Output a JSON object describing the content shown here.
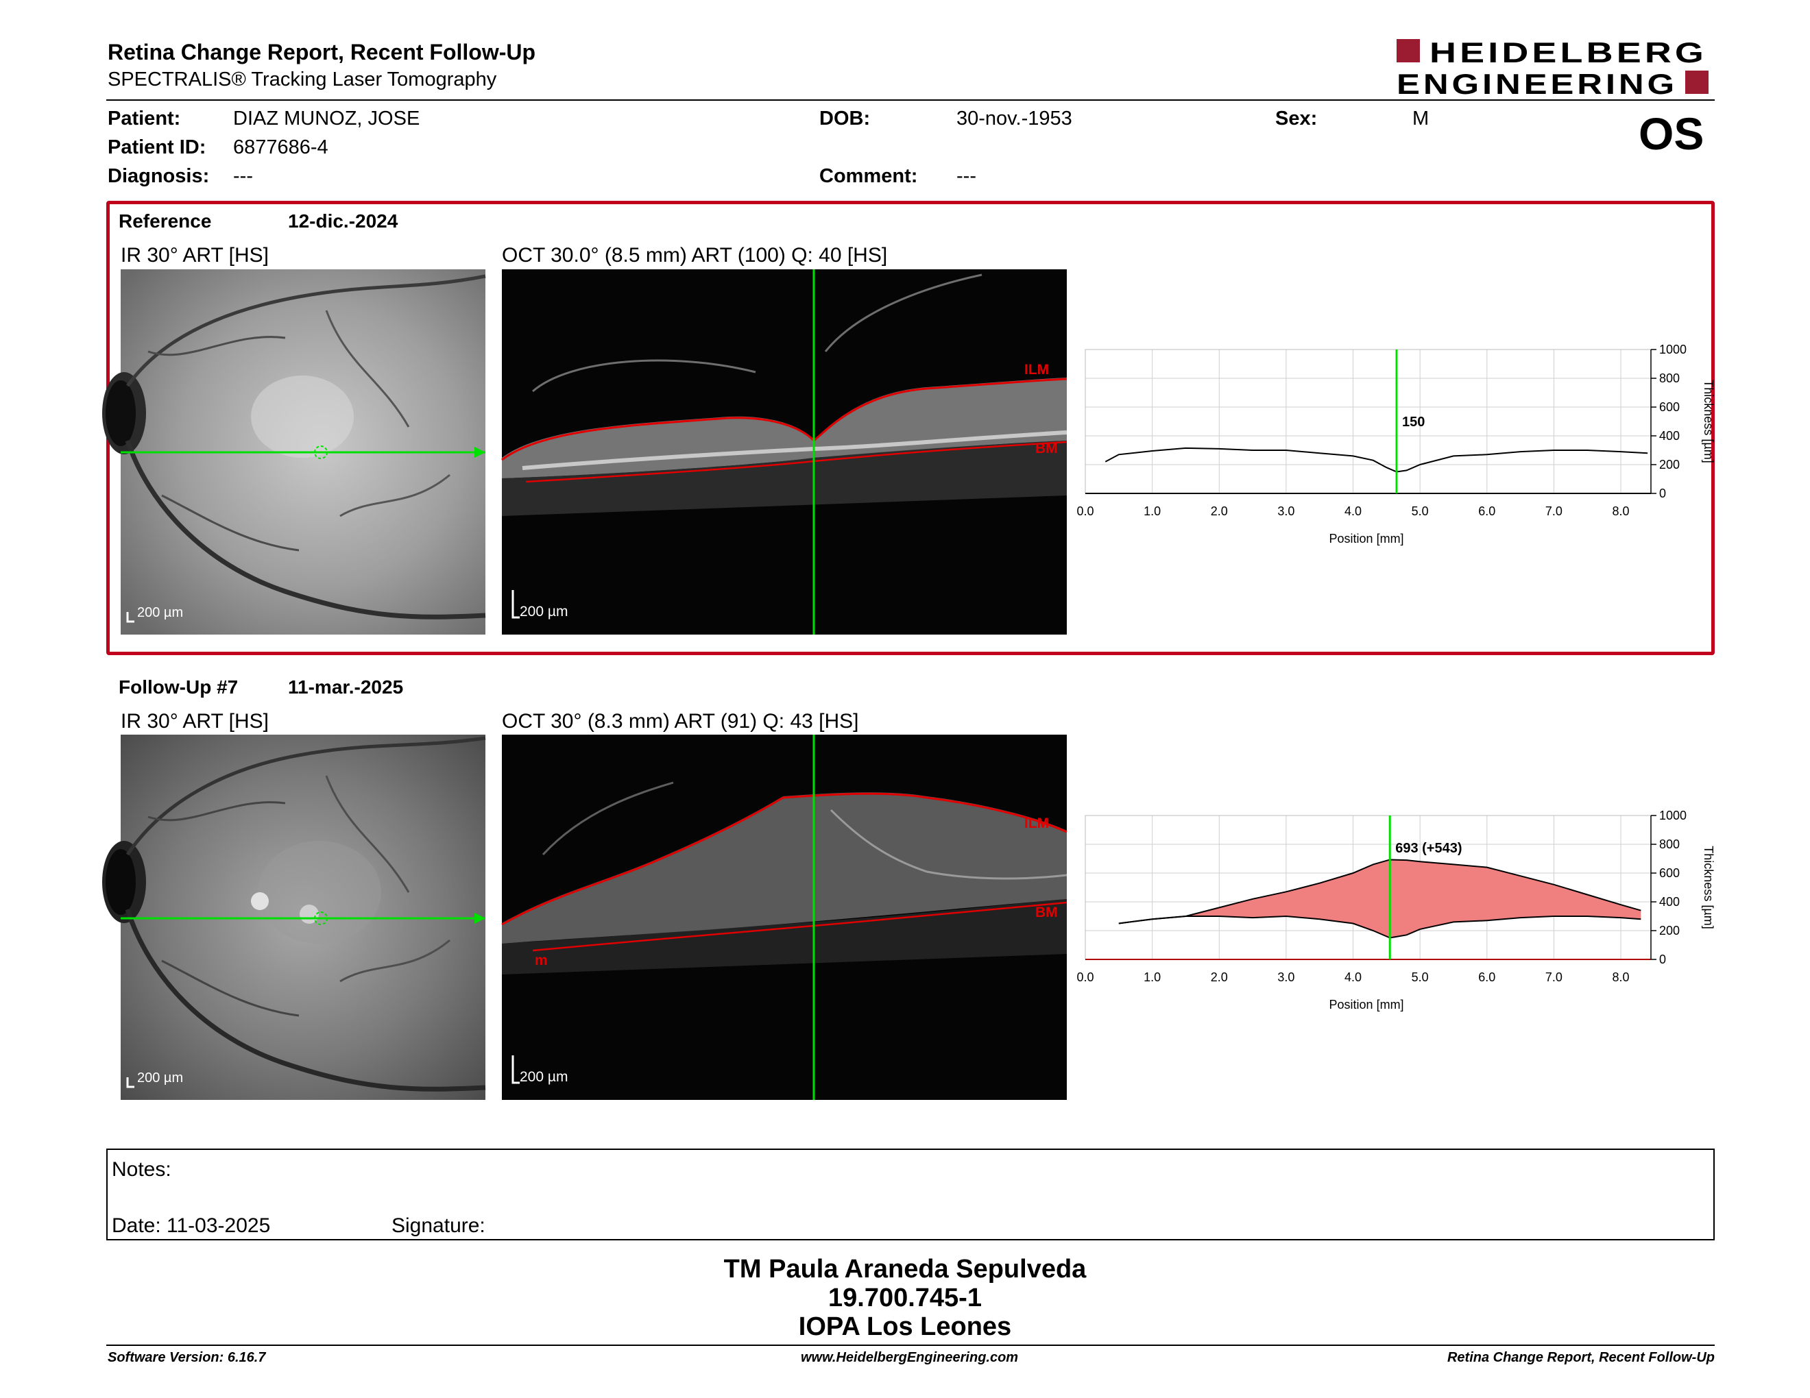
{
  "header": {
    "title": "Retina Change Report, Recent Follow-Up",
    "subtitle": "SPECTRALIS® Tracking Laser Tomography",
    "logo_line1": "HEIDELBERG",
    "logo_line2": "ENGINEERING",
    "eye": "OS"
  },
  "patient": {
    "patient_label": "Patient:",
    "patient_value": "DIAZ MUNOZ, JOSE",
    "id_label": "Patient ID:",
    "id_value": "6877686-4",
    "diagnosis_label": "Diagnosis:",
    "diagnosis_value": "---",
    "dob_label": "DOB:",
    "dob_value": "30-nov.-1953",
    "comment_label": "Comment:",
    "comment_value": "---",
    "sex_label": "Sex:",
    "sex_value": "M"
  },
  "reference": {
    "label": "Reference",
    "date": "12-dic.-2024",
    "ir_caption": "IR 30° ART [HS]",
    "oct_caption": "OCT 30.0° (8.5 mm) ART (100) Q: 40 [HS]",
    "scale_ir": "200 µm",
    "scale_oct": "200 µm",
    "ilm": "ILM",
    "bm": "BM"
  },
  "followup": {
    "label": "Follow-Up #7",
    "date": "11-mar.-2025",
    "ir_caption": "IR 30° ART [HS]",
    "oct_caption": "OCT 30° (8.3 mm) ART (91) Q: 43 [HS]",
    "scale_ir": "200 µm",
    "scale_oct": "200 µm",
    "ilm": "ILM",
    "bm": "BM",
    "m_label": "m"
  },
  "chart_data": [
    {
      "type": "line",
      "xlabel": "Position [mm]",
      "ylabel": "Thickness [µm]",
      "xlim": [
        0,
        8.5
      ],
      "ylim": [
        0,
        1000
      ],
      "x_ticks": [
        "0.0",
        "1.0",
        "2.0",
        "3.0",
        "4.0",
        "5.0",
        "6.0",
        "7.0",
        "8.0"
      ],
      "y_ticks": [
        "0",
        "200",
        "400",
        "600",
        "800",
        "1000"
      ],
      "cursor_x": 4.65,
      "cursor_label": "150",
      "series": [
        {
          "x": [
            0.3,
            0.5,
            1.0,
            1.5,
            2.0,
            2.5,
            3.0,
            3.5,
            4.0,
            4.3,
            4.5,
            4.65,
            4.8,
            5.0,
            5.5,
            6.0,
            6.5,
            7.0,
            7.5,
            8.0,
            8.4
          ],
          "values": [
            220,
            270,
            295,
            315,
            310,
            300,
            300,
            280,
            260,
            230,
            180,
            150,
            160,
            200,
            260,
            270,
            290,
            300,
            300,
            290,
            280
          ],
          "color": "#000000"
        }
      ]
    },
    {
      "type": "area",
      "xlabel": "Position [mm]",
      "ylabel": "Thickness [µm]",
      "xlim": [
        0,
        8.3
      ],
      "ylim": [
        0,
        1000
      ],
      "x_ticks": [
        "0.0",
        "1.0",
        "2.0",
        "3.0",
        "4.0",
        "5.0",
        "6.0",
        "7.0",
        "8.0"
      ],
      "y_ticks": [
        "0",
        "200",
        "400",
        "600",
        "800",
        "1000"
      ],
      "cursor_x": 4.55,
      "cursor_label": "693 (+543)",
      "fill_color": "#f08080",
      "series": [
        {
          "x": [
            0.5,
            1.0,
            1.5,
            2.0,
            2.5,
            3.0,
            3.5,
            4.0,
            4.3,
            4.55,
            4.8,
            5.0,
            5.5,
            6.0,
            6.5,
            7.0,
            7.5,
            8.0,
            8.3
          ],
          "values": [
            250,
            280,
            300,
            360,
            420,
            470,
            530,
            600,
            660,
            693,
            690,
            680,
            660,
            640,
            580,
            520,
            450,
            380,
            340
          ],
          "color": "#000000"
        },
        {
          "x": [
            0.5,
            1.0,
            1.5,
            2.0,
            2.5,
            3.0,
            3.5,
            4.0,
            4.3,
            4.55,
            4.8,
            5.0,
            5.5,
            6.0,
            6.5,
            7.0,
            7.5,
            8.0,
            8.3
          ],
          "values": [
            250,
            280,
            300,
            300,
            290,
            300,
            280,
            250,
            200,
            150,
            170,
            210,
            260,
            270,
            290,
            300,
            300,
            290,
            280
          ],
          "color": "#000000"
        }
      ]
    }
  ],
  "notes": {
    "notes_label": "Notes:",
    "date_label": "Date: 11-03-2025",
    "signature_label": "Signature:"
  },
  "signature": {
    "line1": "TM Paula Araneda Sepulveda",
    "line2": "19.700.745-1",
    "line3": "IOPA Los Leones"
  },
  "footer": {
    "left": "Software Version: 6.16.7",
    "center": "www.HeidelbergEngineering.com",
    "right": "Retina Change Report, Recent Follow-Up"
  },
  "colors": {
    "brand_red": "#9b1b30",
    "box_red": "#c0001c",
    "scan_green": "#00e000",
    "segment_red": "#e00000",
    "fill": "#f08080"
  }
}
